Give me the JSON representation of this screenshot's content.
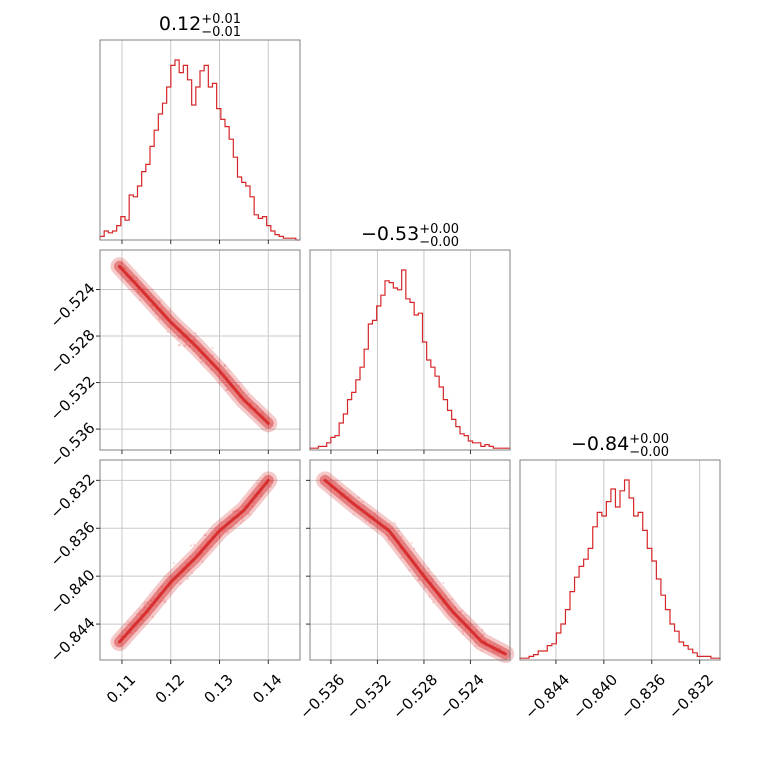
{
  "chart_data": {
    "type": "corner",
    "color": "#d62728",
    "grid": true,
    "parameters": [
      {
        "title": {
          "median": "0.12",
          "plus": "+0.01",
          "minus": "−0.01"
        },
        "range": [
          0.1055,
          0.1465
        ],
        "ticks": [
          {
            "value": 0.11,
            "label": "0.11"
          },
          {
            "value": 0.12,
            "label": "0.12"
          },
          {
            "value": 0.13,
            "label": "0.13"
          },
          {
            "value": 0.14,
            "label": "0.14"
          }
        ],
        "histogram": [
          0.02,
          0.05,
          0.04,
          0.05,
          0.08,
          0.13,
          0.11,
          0.25,
          0.24,
          0.3,
          0.38,
          0.42,
          0.52,
          0.61,
          0.7,
          0.76,
          0.85,
          0.97,
          1.0,
          0.93,
          0.97,
          0.89,
          0.75,
          0.85,
          0.94,
          0.97,
          0.85,
          0.87,
          0.73,
          0.67,
          0.63,
          0.56,
          0.46,
          0.35,
          0.32,
          0.3,
          0.24,
          0.14,
          0.12,
          0.13,
          0.08,
          0.05,
          0.03,
          0.02,
          0.01,
          0.01,
          0.01,
          0.0
        ]
      },
      {
        "title": {
          "median": "−0.53",
          "plus": "+0.00",
          "minus": "−0.00"
        },
        "range": [
          -0.5378,
          -0.5206
        ],
        "ticks": [
          {
            "value": -0.536,
            "label": "−0.536"
          },
          {
            "value": -0.532,
            "label": "−0.532"
          },
          {
            "value": -0.528,
            "label": "−0.528"
          },
          {
            "value": -0.524,
            "label": "−0.524"
          }
        ],
        "histogram": [
          0.01,
          0.01,
          0.02,
          0.02,
          0.04,
          0.07,
          0.08,
          0.15,
          0.2,
          0.28,
          0.32,
          0.39,
          0.46,
          0.56,
          0.7,
          0.72,
          0.8,
          0.86,
          0.94,
          0.93,
          0.9,
          0.89,
          1.0,
          0.84,
          0.82,
          0.75,
          0.76,
          0.6,
          0.5,
          0.46,
          0.41,
          0.35,
          0.28,
          0.22,
          0.17,
          0.13,
          0.09,
          0.08,
          0.05,
          0.04,
          0.04,
          0.02,
          0.03,
          0.02,
          0.01,
          0.01,
          0.01,
          0.01
        ]
      },
      {
        "title": {
          "median": "−0.84",
          "plus": "+0.00",
          "minus": "−0.00"
        },
        "range": [
          -0.847,
          -0.8303
        ],
        "ticks": [
          {
            "value": -0.844,
            "label": "−0.844"
          },
          {
            "value": -0.84,
            "label": "−0.840"
          },
          {
            "value": -0.836,
            "label": "−0.836"
          },
          {
            "value": -0.832,
            "label": "−0.832"
          }
        ],
        "histogram": [
          0.01,
          0.01,
          0.02,
          0.03,
          0.05,
          0.05,
          0.08,
          0.09,
          0.15,
          0.2,
          0.28,
          0.38,
          0.46,
          0.52,
          0.56,
          0.62,
          0.74,
          0.82,
          0.8,
          0.88,
          0.95,
          0.85,
          0.94,
          1.0,
          0.9,
          0.8,
          0.82,
          0.72,
          0.62,
          0.55,
          0.45,
          0.36,
          0.28,
          0.2,
          0.16,
          0.1,
          0.08,
          0.06,
          0.04,
          0.02,
          0.02,
          0.02,
          0.01,
          0.01
        ]
      }
    ],
    "pairs": [
      {
        "x_param": 0,
        "y_param": 1,
        "slope": -0.42,
        "points": [
          [
            0.1095,
            -0.522
          ],
          [
            0.115,
            -0.5245
          ],
          [
            0.12,
            -0.5268
          ],
          [
            0.125,
            -0.5288
          ],
          [
            0.13,
            -0.531
          ],
          [
            0.135,
            -0.5335
          ],
          [
            0.14,
            -0.5355
          ]
        ]
      },
      {
        "x_param": 0,
        "y_param": 2,
        "slope": 0.38,
        "points": [
          [
            0.1095,
            -0.8455
          ],
          [
            0.115,
            -0.843
          ],
          [
            0.12,
            -0.8405
          ],
          [
            0.125,
            -0.8385
          ],
          [
            0.13,
            -0.8362
          ],
          [
            0.135,
            -0.8345
          ],
          [
            0.14,
            -0.832
          ]
        ]
      },
      {
        "x_param": 1,
        "y_param": 2,
        "slope": 0.9,
        "points": [
          [
            -0.5365,
            -0.832
          ],
          [
            -0.534,
            -0.834
          ],
          [
            -0.531,
            -0.8362
          ],
          [
            -0.528,
            -0.84
          ],
          [
            -0.5255,
            -0.843
          ],
          [
            -0.523,
            -0.8455
          ],
          [
            -0.521,
            -0.8465
          ]
        ]
      }
    ]
  }
}
